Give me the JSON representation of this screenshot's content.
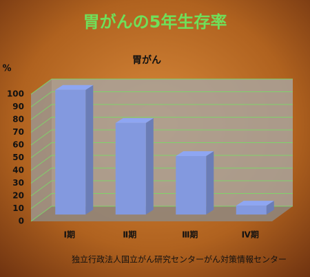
{
  "chart_data": {
    "type": "bar",
    "title": "胃がんの5年生存率",
    "subtitle": "胃がん",
    "y_label": "%",
    "categories": [
      "Ⅰ期",
      "Ⅱ期",
      "Ⅲ期",
      "Ⅳ期"
    ],
    "values": [
      98,
      72,
      46,
      7
    ],
    "color": "#8ea6f2",
    "ylim": [
      0,
      100
    ],
    "yticks": [
      0,
      10,
      20,
      30,
      40,
      50,
      60,
      70,
      80,
      90,
      100
    ],
    "grid": true,
    "source": "独立行政法人国立がん研究センターがん対策情報センター"
  }
}
